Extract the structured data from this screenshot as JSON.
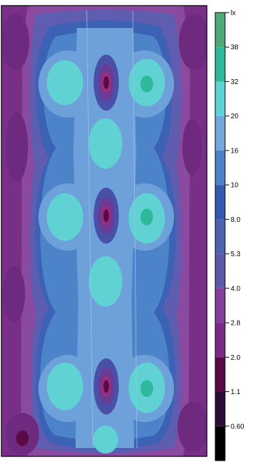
{
  "chart_data": {
    "type": "heatmap",
    "title": "",
    "xlabel": "",
    "ylabel": "",
    "colorbar": {
      "unit": "lx",
      "levels": [
        {
          "value": 0,
          "label": "",
          "color": "#000000"
        },
        {
          "value": 0.6,
          "label": "0.60",
          "color": "#2d0c3a"
        },
        {
          "value": 1.1,
          "label": "1.1",
          "color": "#5a0a45"
        },
        {
          "value": 2.0,
          "label": "2.0",
          "color": "#7a2b86"
        },
        {
          "value": 2.8,
          "label": "2.8",
          "color": "#83419b"
        },
        {
          "value": 4.0,
          "label": "4.0",
          "color": "#5d58a8"
        },
        {
          "value": 5.3,
          "label": "5.3",
          "color": "#4f62b1"
        },
        {
          "value": 8.0,
          "label": "8.0",
          "color": "#3658ad"
        },
        {
          "value": 10,
          "label": "10",
          "color": "#4c82c8"
        },
        {
          "value": 16,
          "label": "16",
          "color": "#73a7dd"
        },
        {
          "value": 20,
          "label": "20",
          "color": "#5fd3d4"
        },
        {
          "value": 32,
          "label": "32",
          "color": "#2fb89b"
        },
        {
          "value": 38,
          "label": "38",
          "color": "#4faa78"
        }
      ]
    },
    "luminaires": [
      {
        "row": 1,
        "peak_left": 20,
        "dark_center": 1.1,
        "peak_right": 32
      },
      {
        "row": 2,
        "peak_left": 20,
        "dark_center": 1.1,
        "peak_right": 32
      },
      {
        "row": 3,
        "peak_left": 20,
        "dark_center": 1.1,
        "peak_right": 32
      }
    ],
    "grid": false,
    "legend_position": "right"
  }
}
